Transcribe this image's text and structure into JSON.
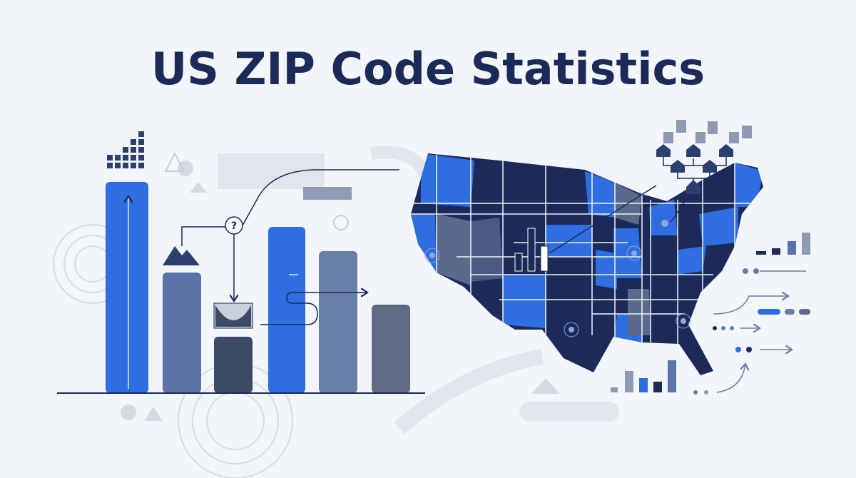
{
  "header": {
    "title": "US ZIP Code Statistics"
  },
  "decor": {
    "question_mark": "?"
  }
}
